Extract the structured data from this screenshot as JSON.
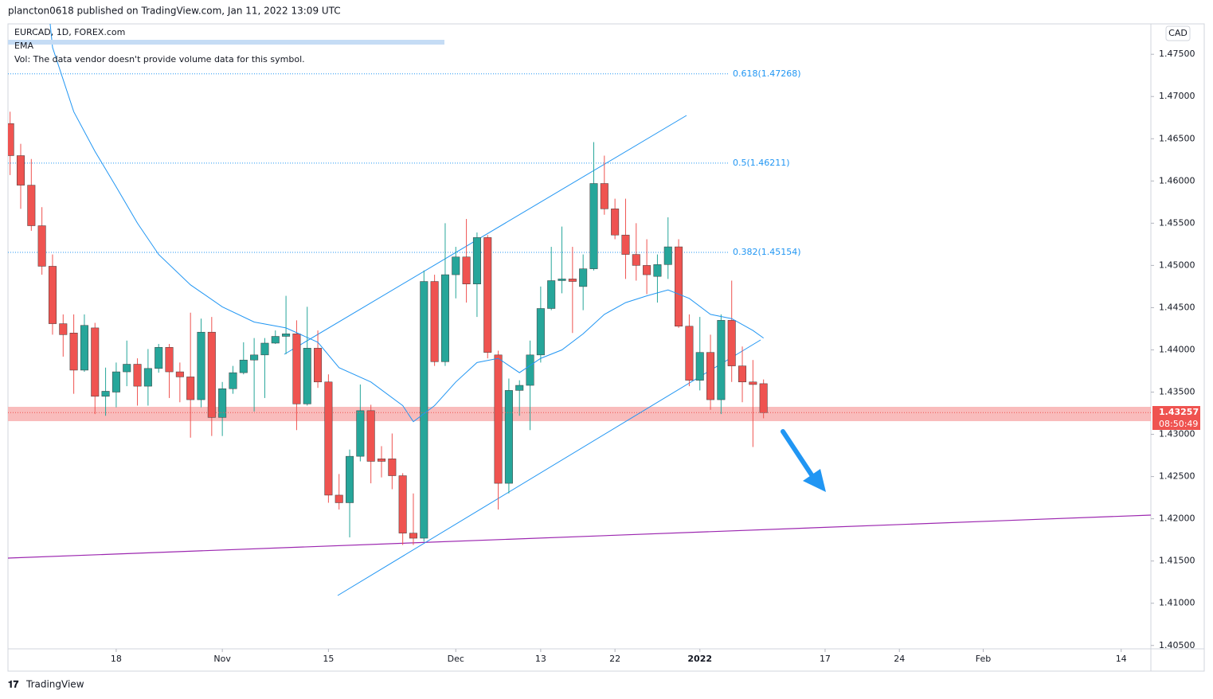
{
  "header": {
    "text": "plancton0618 published on TradingView.com, Jan 11, 2022 13:09 UTC"
  },
  "chart_data": {
    "type": "candlestick",
    "title": "EURCAD, 1D, FOREX.com",
    "indicators": [
      "EMA",
      "Vol: The data vendor doesn't provide volume data for this symbol."
    ],
    "currency": "CAD",
    "colors": {
      "up": "#26a69a",
      "down": "#ef5350"
    },
    "open": [
      1.4668,
      1.463,
      1.4595,
      1.4547,
      1.4499,
      1.4431,
      1.442,
      1.4376,
      1.4426,
      1.4345,
      1.435,
      1.4374,
      1.4383,
      1.4357,
      1.4378,
      1.4403,
      1.4374,
      1.4368,
      1.4341,
      1.4421,
      1.432,
      1.4354,
      1.4373,
      1.4388,
      1.4394,
      1.4408,
      1.4416,
      1.4419,
      1.4336,
      1.4402,
      1.4362,
      1.4228,
      1.4219,
      1.4274,
      1.4328,
      1.4271,
      1.4271,
      1.4251,
      1.4183,
      1.4177,
      1.4481,
      1.4386,
      1.4489,
      1.451,
      1.4478,
      1.4533,
      1.4394,
      1.4242,
      1.4352,
      1.4358,
      1.4394,
      1.4449,
      1.4482,
      1.4484,
      1.4475,
      1.4496,
      1.4597,
      1.4567,
      1.4536,
      1.4513,
      1.45,
      1.4487,
      1.4501,
      1.4522,
      1.4428,
      1.4364,
      1.4397,
      1.4341,
      1.4435,
      1.4381,
      1.4362,
      1.436
    ],
    "high": [
      1.4682,
      1.4644,
      1.4626,
      1.4569,
      1.4513,
      1.4442,
      1.4442,
      1.4442,
      1.4432,
      1.4379,
      1.4385,
      1.4411,
      1.439,
      1.4401,
      1.4407,
      1.4407,
      1.4385,
      1.4444,
      1.4437,
      1.4439,
      1.4362,
      1.4381,
      1.4409,
      1.4414,
      1.4414,
      1.4423,
      1.4464,
      1.4435,
      1.4451,
      1.4423,
      1.4371,
      1.4253,
      1.4282,
      1.4359,
      1.4335,
      1.4286,
      1.4301,
      1.4254,
      1.423,
      1.4494,
      1.4489,
      1.455,
      1.4522,
      1.4555,
      1.4539,
      1.4536,
      1.4399,
      1.4366,
      1.4364,
      1.4411,
      1.4475,
      1.4522,
      1.4546,
      1.4522,
      1.4513,
      1.4646,
      1.463,
      1.4579,
      1.4579,
      1.455,
      1.4531,
      1.4513,
      1.4557,
      1.4531,
      1.4442,
      1.4439,
      1.4418,
      1.4442,
      1.4482,
      1.4404,
      1.4388,
      1.4365
    ],
    "low": [
      1.4607,
      1.4567,
      1.4541,
      1.4489,
      1.4418,
      1.4392,
      1.4348,
      1.4374,
      1.4324,
      1.4322,
      1.4332,
      1.4357,
      1.4334,
      1.4334,
      1.4373,
      1.4343,
      1.4338,
      1.4296,
      1.4332,
      1.4298,
      1.4298,
      1.4348,
      1.4371,
      1.4327,
      1.4343,
      1.4407,
      1.4395,
      1.4305,
      1.4334,
      1.4355,
      1.4219,
      1.4211,
      1.4178,
      1.4268,
      1.4242,
      1.4249,
      1.4235,
      1.4169,
      1.4169,
      1.4173,
      1.4381,
      1.4381,
      1.4461,
      1.4456,
      1.4439,
      1.439,
      1.4211,
      1.423,
      1.4322,
      1.4305,
      1.4385,
      1.4447,
      1.4467,
      1.442,
      1.4447,
      1.4494,
      1.456,
      1.4531,
      1.4484,
      1.4482,
      1.4466,
      1.4456,
      1.4484,
      1.4426,
      1.4357,
      1.4352,
      1.4329,
      1.4324,
      1.4362,
      1.4338,
      1.4285,
      1.4319
    ],
    "close": [
      1.463,
      1.4595,
      1.4547,
      1.4499,
      1.4431,
      1.4418,
      1.4376,
      1.4429,
      1.4345,
      1.4351,
      1.4374,
      1.4383,
      1.4357,
      1.4378,
      1.4403,
      1.4374,
      1.4368,
      1.4341,
      1.4421,
      1.432,
      1.4354,
      1.4373,
      1.4388,
      1.4394,
      1.4408,
      1.4416,
      1.4419,
      1.4336,
      1.4402,
      1.4362,
      1.4228,
      1.4219,
      1.4274,
      1.4328,
      1.4268,
      1.4268,
      1.4251,
      1.4183,
      1.4177,
      1.4481,
      1.4386,
      1.4489,
      1.451,
      1.4478,
      1.4533,
      1.4397,
      1.4242,
      1.4352,
      1.4358,
      1.4394,
      1.4449,
      1.4482,
      1.4484,
      1.4481,
      1.4496,
      1.4597,
      1.4567,
      1.4536,
      1.4513,
      1.45,
      1.4489,
      1.4501,
      1.4522,
      1.4428,
      1.4364,
      1.4397,
      1.4341,
      1.4435,
      1.4381,
      1.4362,
      1.4359,
      1.43257
    ],
    "series": [
      {
        "name": "EMA",
        "color": "#2196f3",
        "x": [
          3.7,
          4,
          6,
          8,
          10,
          12,
          14,
          17,
          20,
          23,
          26,
          29,
          31,
          34,
          37,
          38,
          40,
          42,
          44,
          46,
          48,
          50,
          52,
          54,
          56,
          58,
          60,
          62,
          64,
          66,
          68,
          70,
          71
        ],
        "values": [
          1.4795,
          1.4758,
          1.4682,
          1.4635,
          1.4593,
          1.455,
          1.4513,
          1.4477,
          1.4451,
          1.4433,
          1.4426,
          1.4409,
          1.4379,
          1.4362,
          1.4334,
          1.4315,
          1.4334,
          1.4362,
          1.4385,
          1.439,
          1.4373,
          1.439,
          1.44,
          1.4419,
          1.4442,
          1.4456,
          1.4464,
          1.4471,
          1.4461,
          1.4442,
          1.4437,
          1.4423,
          1.4414
        ]
      }
    ],
    "fib_levels": [
      {
        "value": 1.47268,
        "label": "0.618(1.47268)"
      },
      {
        "value": 1.46211,
        "label": "0.5(1.46211)"
      },
      {
        "value": 1.45154,
        "label": "0.382(1.45154)"
      }
    ],
    "last_price": 1.43257,
    "countdown": "08:50:49",
    "xlim": [
      -0.2,
      107.5
    ],
    "xticks": [
      {
        "value": 10,
        "label": "18"
      },
      {
        "value": 20,
        "label": "Nov"
      },
      {
        "value": 30,
        "label": "15"
      },
      {
        "value": 42,
        "label": "Dec"
      },
      {
        "value": 50,
        "label": "13"
      },
      {
        "value": 57,
        "label": "22"
      },
      {
        "value": 65,
        "label": "2022"
      },
      {
        "value": 76.8,
        "label": "17"
      },
      {
        "value": 83.8,
        "label": "24"
      },
      {
        "value": 91.7,
        "label": "Feb"
      },
      {
        "value": 104.7,
        "label": "14"
      }
    ],
    "ylim": [
      1.4046,
      1.4786
    ],
    "yticks": [
      {
        "value": 1.475,
        "label": "1.47500"
      },
      {
        "value": 1.47,
        "label": "1.47000"
      },
      {
        "value": 1.465,
        "label": "1.46500"
      },
      {
        "value": 1.46,
        "label": "1.46000"
      },
      {
        "value": 1.455,
        "label": "1.45500"
      },
      {
        "value": 1.45,
        "label": "1.45000"
      },
      {
        "value": 1.445,
        "label": "1.44500"
      },
      {
        "value": 1.44,
        "label": "1.44000"
      },
      {
        "value": 1.435,
        "label": "1.43500"
      },
      {
        "value": 1.43,
        "label": "1.43000"
      },
      {
        "value": 1.425,
        "label": "1.42500"
      },
      {
        "value": 1.42,
        "label": "1.42000"
      },
      {
        "value": 1.415,
        "label": "1.41500"
      },
      {
        "value": 1.41,
        "label": "1.41000"
      },
      {
        "value": 1.405,
        "label": "1.40500"
      }
    ]
  },
  "footer": {
    "brand": "TradingView"
  }
}
